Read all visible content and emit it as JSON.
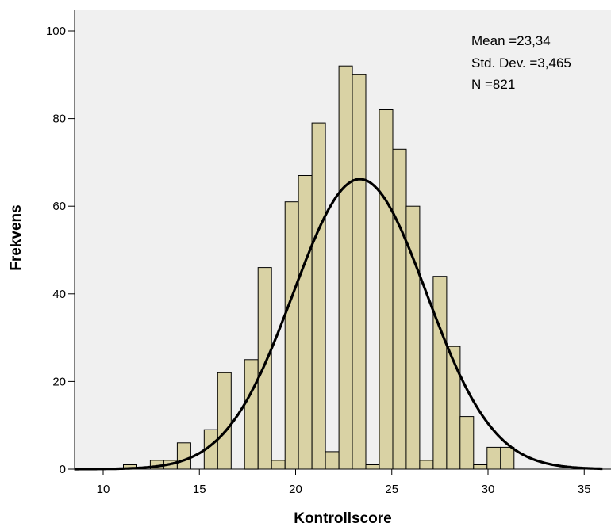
{
  "chart_data": {
    "type": "bar",
    "title": "",
    "xlabel": "Kontrollscore",
    "ylabel": "Frekvens",
    "xlim": [
      8.5,
      36.0
    ],
    "ylim": [
      0,
      104
    ],
    "xticks": [
      10,
      15,
      20,
      25,
      30,
      35
    ],
    "yticks": [
      0,
      20,
      40,
      60,
      80,
      100
    ],
    "bin_width": 0.7,
    "bins_x": [
      10.0,
      10.7,
      11.4,
      12.1,
      12.8,
      13.5,
      14.2,
      14.9,
      15.6,
      16.3,
      17.0,
      17.7,
      18.4,
      19.1,
      19.8,
      20.5,
      21.2,
      21.9,
      22.6,
      23.3,
      24.0,
      24.7,
      25.4,
      26.1,
      26.8,
      27.5,
      28.2,
      28.9,
      29.6,
      30.3,
      31.0,
      31.7
    ],
    "values": [
      0,
      0,
      1,
      0,
      2,
      2,
      6,
      0,
      9,
      22,
      0,
      25,
      46,
      2,
      61,
      67,
      79,
      4,
      92,
      90,
      1,
      82,
      73,
      60,
      2,
      44,
      28,
      12,
      1,
      5,
      5,
      0
    ],
    "normal_curve": {
      "mean": 23.34,
      "sd": 3.465,
      "n": 821
    },
    "stats": [
      {
        "label": "Mean",
        "value": "23,34"
      },
      {
        "label": "Std. Dev.",
        "value": "3,465"
      },
      {
        "label": "N",
        "value": "821"
      }
    ],
    "colors": {
      "bar_fill": "#d9d2a4",
      "bar_stroke": "#000000",
      "plot_bg": "#f0f0f0",
      "curve": "#000000"
    },
    "grid": false,
    "legend": "none"
  }
}
